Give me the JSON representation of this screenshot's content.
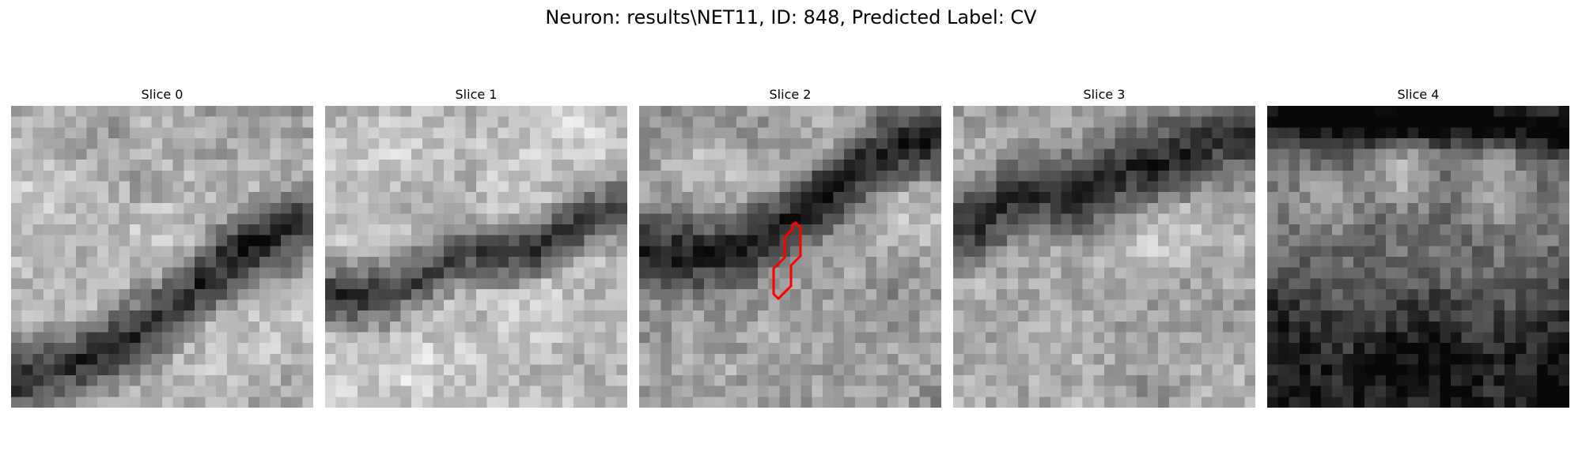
{
  "figure": {
    "title": "Neuron: results\\NET11, ID: 848, Predicted Label: CV"
  },
  "panels": [
    {
      "title": "Slice 0",
      "image_description": "grayscale EM patch",
      "seed": 11,
      "dark_band": [
        [
          0.0,
          0.92
        ],
        [
          0.12,
          0.89
        ],
        [
          0.24,
          0.84
        ],
        [
          0.36,
          0.78
        ],
        [
          0.48,
          0.72
        ],
        [
          0.58,
          0.64
        ],
        [
          0.66,
          0.55
        ],
        [
          0.76,
          0.48
        ],
        [
          0.88,
          0.42
        ],
        [
          1.0,
          0.38
        ]
      ],
      "band_width": 0.11,
      "base_level": 0.68,
      "bright_spots": [
        [
          0.12,
          0.28,
          0.88
        ],
        [
          0.4,
          0.44,
          0.8
        ],
        [
          0.78,
          0.82,
          0.82
        ],
        [
          0.2,
          0.62,
          0.74
        ]
      ],
      "overlay": false
    },
    {
      "title": "Slice 1",
      "image_description": "grayscale EM patch",
      "seed": 23,
      "dark_band": [
        [
          0.0,
          0.62
        ],
        [
          0.1,
          0.64
        ],
        [
          0.2,
          0.62
        ],
        [
          0.3,
          0.58
        ],
        [
          0.4,
          0.52
        ],
        [
          0.5,
          0.48
        ],
        [
          0.6,
          0.5
        ],
        [
          0.7,
          0.47
        ],
        [
          0.8,
          0.42
        ],
        [
          0.9,
          0.36
        ],
        [
          1.0,
          0.33
        ]
      ],
      "band_width": 0.09,
      "base_level": 0.74,
      "bright_spots": [
        [
          0.2,
          0.15,
          0.92
        ],
        [
          0.3,
          0.88,
          0.95
        ],
        [
          0.72,
          0.7,
          0.86
        ],
        [
          0.85,
          0.08,
          0.9
        ]
      ],
      "overlay": false
    },
    {
      "title": "Slice 2",
      "image_description": "grayscale EM patch",
      "seed": 37,
      "dark_band": [
        [
          0.0,
          0.48
        ],
        [
          0.12,
          0.5
        ],
        [
          0.24,
          0.5
        ],
        [
          0.36,
          0.46
        ],
        [
          0.48,
          0.4
        ],
        [
          0.6,
          0.32
        ],
        [
          0.7,
          0.22
        ],
        [
          0.8,
          0.16
        ],
        [
          0.9,
          0.12
        ],
        [
          1.0,
          0.1
        ]
      ],
      "band_width": 0.11,
      "base_level": 0.62,
      "bright_spots": [
        [
          0.22,
          0.2,
          0.85
        ],
        [
          0.88,
          0.38,
          0.8
        ],
        [
          0.5,
          0.78,
          0.72
        ]
      ],
      "overlay": true,
      "overlay_color": "#ff0000"
    },
    {
      "title": "Slice 3",
      "image_description": "grayscale EM patch",
      "seed": 53,
      "dark_band": [
        [
          0.0,
          0.42
        ],
        [
          0.1,
          0.38
        ],
        [
          0.2,
          0.3
        ],
        [
          0.3,
          0.28
        ],
        [
          0.4,
          0.3
        ],
        [
          0.5,
          0.24
        ],
        [
          0.6,
          0.2
        ],
        [
          0.7,
          0.18
        ],
        [
          0.8,
          0.14
        ],
        [
          0.9,
          0.12
        ],
        [
          1.0,
          0.1
        ]
      ],
      "band_width": 0.12,
      "base_level": 0.66,
      "bright_spots": [
        [
          0.72,
          0.44,
          0.88
        ],
        [
          0.3,
          0.8,
          0.72
        ],
        [
          0.82,
          0.86,
          0.7
        ]
      ],
      "overlay": false
    },
    {
      "title": "Slice 4",
      "image_description": "grayscale EM patch",
      "seed": 71,
      "dark_band": [
        [
          0.0,
          0.04
        ],
        [
          0.2,
          0.04
        ],
        [
          0.4,
          0.05
        ],
        [
          0.6,
          0.04
        ],
        [
          0.8,
          0.06
        ],
        [
          1.0,
          0.08
        ]
      ],
      "band_width": 0.07,
      "base_level": 0.42,
      "bright_spots": [
        [
          0.45,
          0.24,
          0.95
        ],
        [
          0.2,
          0.32,
          0.82
        ],
        [
          0.75,
          0.3,
          0.8
        ]
      ],
      "dark_lower": true,
      "overlay": false
    }
  ]
}
